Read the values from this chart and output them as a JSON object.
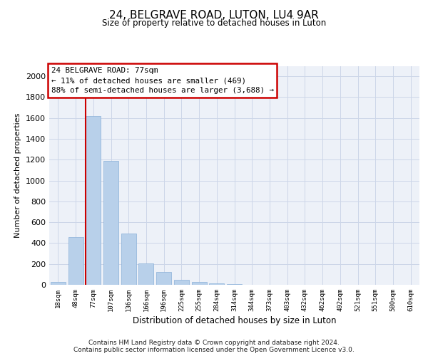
{
  "title": "24, BELGRAVE ROAD, LUTON, LU4 9AR",
  "subtitle": "Size of property relative to detached houses in Luton",
  "xlabel": "Distribution of detached houses by size in Luton",
  "ylabel": "Number of detached properties",
  "categories": [
    "18sqm",
    "48sqm",
    "77sqm",
    "107sqm",
    "136sqm",
    "166sqm",
    "196sqm",
    "225sqm",
    "255sqm",
    "284sqm",
    "314sqm",
    "344sqm",
    "373sqm",
    "403sqm",
    "432sqm",
    "462sqm",
    "492sqm",
    "521sqm",
    "551sqm",
    "580sqm",
    "610sqm"
  ],
  "values": [
    25,
    460,
    1620,
    1190,
    490,
    205,
    120,
    45,
    25,
    15,
    8,
    2,
    0,
    0,
    0,
    0,
    0,
    0,
    0,
    0,
    0
  ],
  "bar_color": "#b8d0ea",
  "bar_edge_color": "#8ab0d8",
  "vline_color": "#cc0000",
  "vline_x": 1.575,
  "annotation_text": "24 BELGRAVE ROAD: 77sqm\n← 11% of detached houses are smaller (469)\n88% of semi-detached houses are larger (3,688) →",
  "annotation_box_edge": "#cc0000",
  "ylim": [
    0,
    2100
  ],
  "yticks": [
    0,
    200,
    400,
    600,
    800,
    1000,
    1200,
    1400,
    1600,
    1800,
    2000
  ],
  "footer": "Contains HM Land Registry data © Crown copyright and database right 2024.\nContains public sector information licensed under the Open Government Licence v3.0.",
  "grid_color": "#ccd6e8",
  "background_color": "#edf1f8"
}
